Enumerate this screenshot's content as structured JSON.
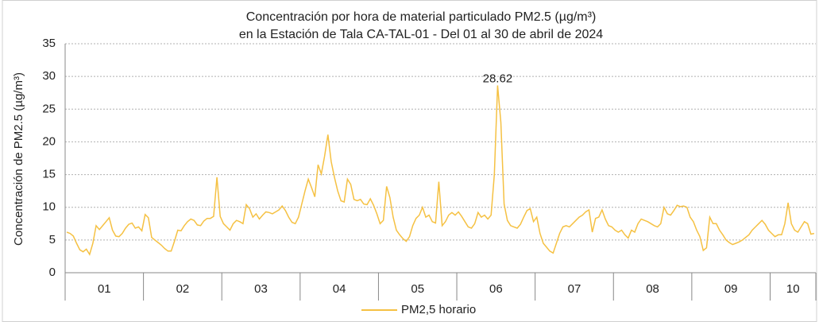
{
  "chart_data": {
    "type": "line",
    "title": [
      "Concentración por hora de material particulado PM2.5 (µg/m³)",
      "en la Estación de Tala CA-TAL-01 - Del 01 al 30 de abril de 2024"
    ],
    "y_label": "Concentración de PM2.5 (µg/m³)",
    "categories": [
      "01",
      "02",
      "03",
      "04",
      "05",
      "06",
      "07",
      "08",
      "09",
      "10"
    ],
    "ylim": [
      0,
      35
    ],
    "yticks": [
      0,
      5,
      10,
      15,
      20,
      25,
      30,
      35
    ],
    "grid": true,
    "series": [
      {
        "name": "PM2,5 horario",
        "color": "#f5c143",
        "values": [
          [
            6.2,
            6,
            5.6,
            4.5,
            3.5,
            3.2,
            3.6,
            2.8,
            4.5,
            7.2,
            6.6,
            7.2,
            7.8,
            8.4,
            6.5,
            5.6,
            5.5,
            6,
            6.8,
            7.4,
            7.6,
            6.8,
            7,
            6.4
          ],
          [
            8.9,
            8.4,
            5.4,
            5,
            4.6,
            4.2,
            3.7,
            3.3,
            3.3,
            4.8,
            6.5,
            6.4,
            7.2,
            7.8,
            8.2,
            8,
            7.3,
            7.2,
            7.9,
            8.3,
            8.3,
            8.6,
            14.6,
            8.6
          ],
          [
            7.5,
            7,
            6.5,
            7.5,
            8,
            7.8,
            7.5,
            10.4,
            9.8,
            8.5,
            9,
            8.2,
            8.8,
            9.3,
            9.2,
            9,
            9.3,
            9.6,
            10.2,
            9.5,
            8.5,
            7.7,
            7.5,
            8.5
          ],
          [
            10.5,
            12.5,
            14.3,
            13,
            11.6,
            16.5,
            15.1,
            17.8,
            21.1,
            17,
            14.6,
            12.5,
            11,
            10.8,
            14.3,
            13.5,
            11.2,
            11,
            11.2,
            10.5,
            10.4,
            11.3,
            10.3,
            9
          ],
          [
            7.5,
            8,
            13.2,
            11.5,
            8.5,
            6.5,
            5.8,
            5.2,
            4.8,
            5.5,
            7.2,
            8.3,
            8.8,
            10,
            8.5,
            8.8,
            7.8,
            7.6,
            13.9,
            7.2,
            7.8,
            8.8,
            9.2,
            8.8
          ],
          [
            9.3,
            8.6,
            7.8,
            7,
            6.8,
            7.5,
            9.2,
            8.5,
            8.8,
            8.2,
            8.8,
            15,
            28.62,
            23,
            10.5,
            8,
            7.2,
            7,
            6.8,
            7.4,
            8.5,
            9.5,
            9.8,
            7.8
          ],
          [
            8.5,
            6,
            4.5,
            3.9,
            3.3,
            3,
            4.5,
            6,
            7,
            7.2,
            7,
            7.5,
            8,
            8.5,
            8.8,
            9.3,
            9.6,
            6.2,
            8.3,
            8.5,
            9.6,
            8.2,
            7.2,
            7
          ],
          [
            6.5,
            6.2,
            6.5,
            5.8,
            5.3,
            6.5,
            6.2,
            7.5,
            8.2,
            8,
            7.8,
            7.5,
            7.2,
            7,
            7.5,
            10,
            9,
            8.8,
            9.5,
            10.3,
            10.1,
            10.2,
            10,
            8.5
          ],
          [
            7.8,
            6.5,
            5.5,
            3.4,
            3.8,
            8.5,
            7.5,
            7.5,
            6.5,
            5.8,
            5,
            4.6,
            4.3,
            4.5,
            4.7,
            5,
            5.4,
            5.8,
            6.5,
            7,
            7.5,
            8,
            7.4,
            6.5
          ],
          [
            6,
            5.5,
            5.8,
            5.8,
            7.5,
            10.7,
            7.5,
            6.5,
            6.2,
            7,
            7.8,
            7.5,
            5.9,
            6
          ]
        ]
      }
    ]
  }
}
